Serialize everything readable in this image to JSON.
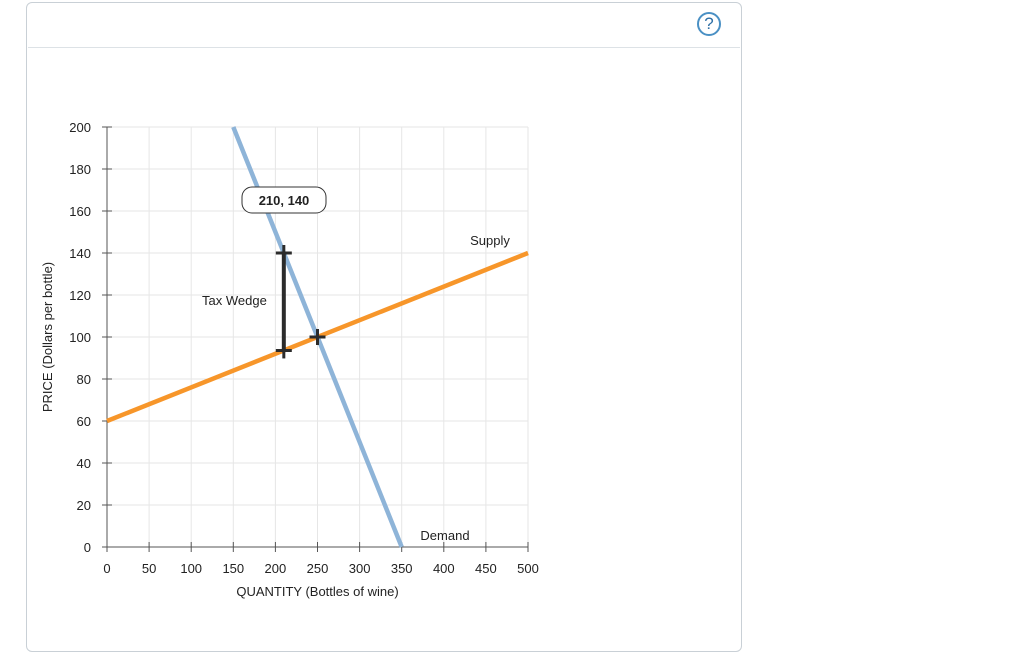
{
  "help": {
    "label": "?"
  },
  "chart_data": {
    "type": "line",
    "title": "",
    "xlabel": "QUANTITY (Bottles of wine)",
    "ylabel": "PRICE (Dollars per bottle)",
    "xlim": [
      0,
      500
    ],
    "ylim": [
      0,
      200
    ],
    "xticks": [
      0,
      50,
      100,
      150,
      200,
      250,
      300,
      350,
      400,
      450,
      500
    ],
    "yticks": [
      0,
      20,
      40,
      60,
      80,
      100,
      120,
      140,
      160,
      180,
      200
    ],
    "grid": true,
    "series": [
      {
        "name": "Supply",
        "color": "#f7962a",
        "points": [
          [
            0,
            60
          ],
          [
            500,
            140
          ]
        ]
      },
      {
        "name": "Demand",
        "color": "#8eb4d8",
        "points": [
          [
            150,
            200
          ],
          [
            350,
            0
          ]
        ]
      }
    ],
    "markers": [
      {
        "name": "buyer-price-point",
        "x": 210,
        "y": 140
      },
      {
        "name": "seller-price-point",
        "x": 210,
        "y": 93.6
      },
      {
        "name": "equilibrium-point",
        "x": 250,
        "y": 100
      }
    ],
    "tax_wedge": {
      "label": "Tax Wedge",
      "x": 210,
      "y_top": 140,
      "y_bottom": 93.6,
      "color": "#2b2b2b"
    },
    "tooltip": {
      "text": "210, 140"
    },
    "annotations": {
      "supply": "Supply",
      "demand": "Demand"
    }
  }
}
